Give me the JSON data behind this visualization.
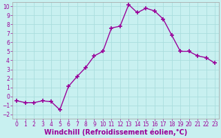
{
  "x": [
    0,
    1,
    2,
    3,
    4,
    5,
    6,
    7,
    8,
    9,
    10,
    11,
    12,
    13,
    14,
    15,
    16,
    17,
    18,
    19,
    20,
    21,
    22,
    23
  ],
  "y": [
    -0.5,
    -0.7,
    -0.7,
    -0.5,
    -0.6,
    -1.5,
    1.1,
    2.2,
    3.2,
    4.5,
    5.0,
    7.6,
    7.8,
    10.2,
    9.3,
    9.8,
    9.5,
    8.6,
    6.8,
    5.0,
    5.0,
    4.5,
    4.3,
    3.7
  ],
  "line_color": "#990099",
  "marker": "+",
  "marker_size": 4,
  "marker_lw": 1.2,
  "bg_color": "#c8f0f0",
  "grid_color": "#aadddd",
  "xlabel": "Windchill (Refroidissement éolien,°C)",
  "ylabel": "",
  "title": "",
  "xlim": [
    -0.5,
    23.5
  ],
  "ylim": [
    -2.5,
    10.5
  ],
  "xticks": [
    0,
    1,
    2,
    3,
    4,
    5,
    6,
    7,
    8,
    9,
    10,
    11,
    12,
    13,
    14,
    15,
    16,
    17,
    18,
    19,
    20,
    21,
    22,
    23
  ],
  "yticks": [
    -2,
    -1,
    0,
    1,
    2,
    3,
    4,
    5,
    6,
    7,
    8,
    9,
    10
  ],
  "tick_color": "#990099",
  "tick_fontsize": 5.5,
  "xlabel_fontsize": 7,
  "xlabel_fontweight": "bold",
  "line_width": 1.0,
  "spine_color": "#aaaaaa"
}
